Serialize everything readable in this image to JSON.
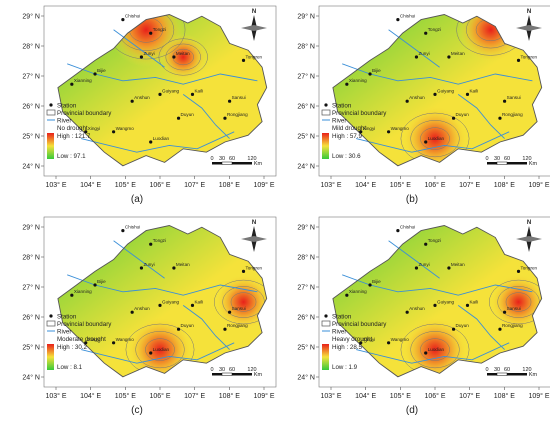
{
  "panels": [
    {
      "caption": "(a)",
      "drought_class": "No drought",
      "high": "High : 121.7",
      "low": "Low : 97.1",
      "hotspots": [
        "upper-center",
        "north-center"
      ],
      "stations": [
        "Bijie",
        "Zunyi",
        "Meitan",
        "Tongzi",
        "Xianning",
        "Anshun",
        "Guiyang",
        "Kaili",
        "Duyun",
        "Luodian",
        "Wangmo",
        "Xingyi",
        "Tongren",
        "Sansui",
        "Rongjiang",
        "Chishui"
      ]
    },
    {
      "caption": "(b)",
      "drought_class": "Mild drought",
      "high": "High : 57.9",
      "low": "Low : 30.6",
      "hotspots": [
        "north-east",
        "south-center"
      ],
      "stations": [
        "Bijie",
        "Zunyi",
        "Meitan",
        "Tongzi",
        "Xianning",
        "Anshun",
        "Guiyang",
        "Kaili",
        "Duyun",
        "Luodian",
        "Wangmo",
        "Xingyi",
        "Tongren",
        "Sansui",
        "Rongjiang",
        "Chishui"
      ]
    },
    {
      "caption": "(c)",
      "drought_class": "Moderate drought",
      "high": "High : 30.2",
      "low": "Low : 8.1",
      "hotspots": [
        "south-center",
        "east"
      ],
      "stations": [
        "Bijie",
        "Zunyi",
        "Meitan",
        "Tongzi",
        "Xianning",
        "Anshun",
        "Guiyang",
        "Kaili",
        "Duyun",
        "Luodian",
        "Wangmo",
        "Xingyi",
        "Tongren",
        "Sansui",
        "Rongjiang",
        "Chishui"
      ]
    },
    {
      "caption": "(d)",
      "drought_class": "Heavy drought",
      "high": "High : 28.5",
      "low": "Low : 1.9",
      "hotspots": [
        "south-center",
        "east"
      ],
      "stations": [
        "Bijie",
        "Zunyi",
        "Meitan",
        "Tongzi",
        "Xianning",
        "Anshun",
        "Guiyang",
        "Kaili",
        "Duyun",
        "Luodian",
        "Wangmo",
        "Xingyi",
        "Tongren",
        "Sansui",
        "Rongjiang",
        "Chishui"
      ]
    }
  ],
  "legend": {
    "station": "Station",
    "boundary": "Provincial boundary",
    "river": "River"
  },
  "lon_labels": [
    "103° E",
    "104° E",
    "105° E",
    "106° E",
    "107° E",
    "108° E",
    "109° E"
  ],
  "lat_labels": [
    "29° N",
    "28° N",
    "27° N",
    "26° N",
    "25° N",
    "24° N"
  ],
  "scale": {
    "ticks": [
      "0",
      "30",
      "60",
      "120"
    ],
    "unit": "Km"
  },
  "north": "N",
  "colors": {
    "high": "#e8211a",
    "mid": "#f5e23a",
    "low": "#36c93a",
    "boundary": "#555555",
    "river": "#3a8fd8"
  }
}
